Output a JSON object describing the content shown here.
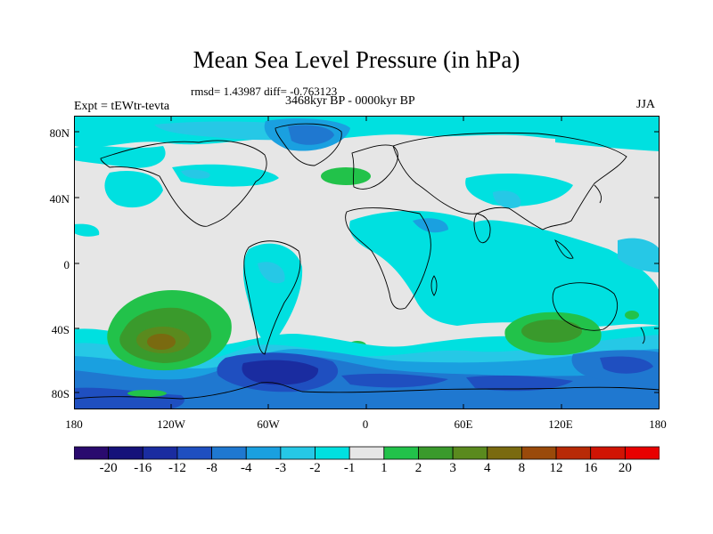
{
  "title": "Mean Sea Level Pressure (in hPa)",
  "stats": "rmsd= 1.43987 diff= -0.763123",
  "experiment": "Expt = tEWtr-tevta",
  "period": "3468kyr BP - 0000kyr BP",
  "season": "JJA",
  "y_axis": {
    "ticks": [
      {
        "label": "80N",
        "lat": 80
      },
      {
        "label": "40N",
        "lat": 40
      },
      {
        "label": "0",
        "lat": 0
      },
      {
        "label": "40S",
        "lat": -40
      },
      {
        "label": "80S",
        "lat": -80
      }
    ]
  },
  "x_axis": {
    "ticks": [
      {
        "label": "180",
        "lon": -180
      },
      {
        "label": "120W",
        "lon": -120
      },
      {
        "label": "60W",
        "lon": -60
      },
      {
        "label": "0",
        "lon": 0
      },
      {
        "label": "60E",
        "lon": 60
      },
      {
        "label": "120E",
        "lon": 120
      },
      {
        "label": "180",
        "lon": 180
      }
    ]
  },
  "colorbar": {
    "colors": [
      "#2a0a6e",
      "#15127a",
      "#1a2ca0",
      "#1f4fc0",
      "#1f78d0",
      "#1aa0e0",
      "#26c8e6",
      "#00e0e0",
      "#e6e6e6",
      "#22c24a",
      "#3a9a2c",
      "#5a8a1e",
      "#7a6a10",
      "#9a4a0a",
      "#b82a06",
      "#d01404",
      "#e80000"
    ],
    "labels": [
      "-20",
      "-16",
      "-12",
      "-8",
      "-4",
      "-3",
      "-2",
      "-1",
      "1",
      "2",
      "3",
      "4",
      "8",
      "12",
      "16",
      "20"
    ]
  },
  "field_colors": {
    "neutral": "#e6e6e6",
    "neg1": "#00e0e0",
    "neg2": "#26c8e6",
    "neg3": "#1aa0e0",
    "neg4": "#1f78d0",
    "neg8": "#1f4fc0",
    "neg12": "#1a2ca0",
    "pos1": "#22c24a",
    "pos2": "#3a9a2c",
    "pos3": "#5a8a1e",
    "pos4": "#7a6a10"
  },
  "coastline_color": "#000000"
}
